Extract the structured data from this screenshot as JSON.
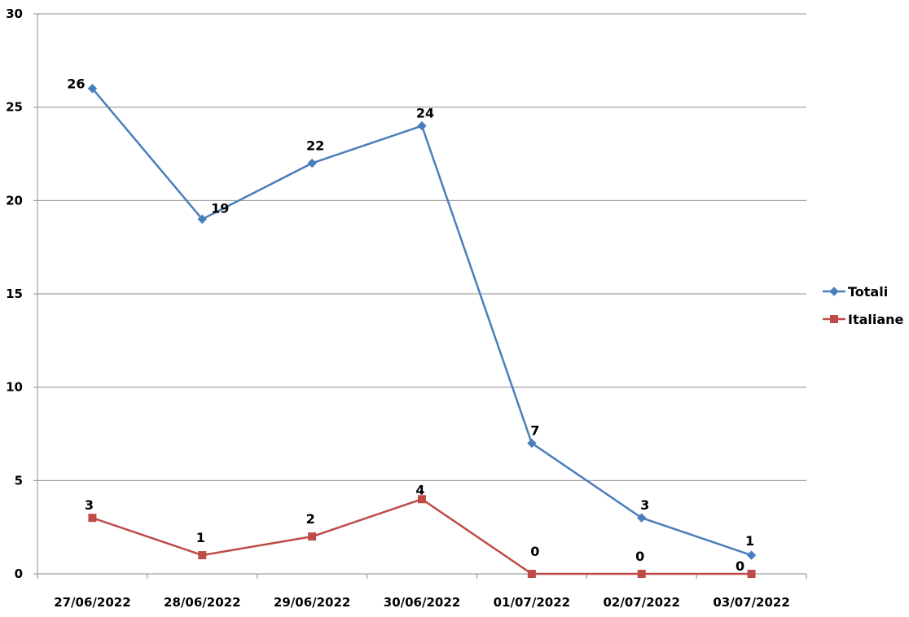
{
  "chart_data": {
    "type": "line",
    "title": "",
    "xlabel": "",
    "ylabel": "",
    "categories": [
      "27/06/2022",
      "28/06/2022",
      "29/06/2022",
      "30/06/2022",
      "01/07/2022",
      "02/07/2022",
      "03/07/2022"
    ],
    "ylim": [
      0,
      30
    ],
    "yticks": [
      0,
      5,
      10,
      15,
      20,
      25,
      30
    ],
    "grid": true,
    "legend_position": "right",
    "series": [
      {
        "name": "Totali",
        "values": [
          26,
          19,
          22,
          24,
          7,
          3,
          1
        ],
        "color": "#4a7ebb",
        "marker": "diamond"
      },
      {
        "name": "Italiane",
        "values": [
          3,
          1,
          2,
          4,
          0,
          0,
          0
        ],
        "color": "#be4b48",
        "marker": "square"
      }
    ]
  }
}
